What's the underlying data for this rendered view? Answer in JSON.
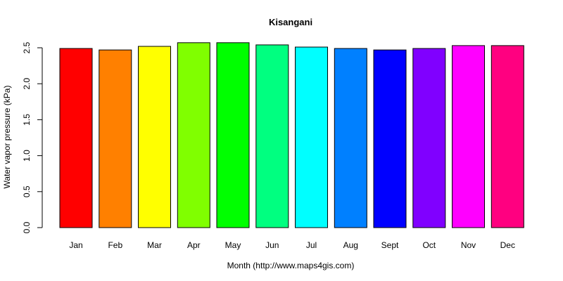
{
  "chart_data": {
    "type": "bar",
    "title": "Kisangani",
    "xlabel": "Month (http://www.maps4gis.com)",
    "ylabel": "Water vapor pressure (kPa)",
    "categories": [
      "Jan",
      "Feb",
      "Mar",
      "Apr",
      "May",
      "Jun",
      "Jul",
      "Aug",
      "Sept",
      "Oct",
      "Nov",
      "Dec"
    ],
    "values": [
      2.49,
      2.47,
      2.52,
      2.57,
      2.57,
      2.54,
      2.51,
      2.49,
      2.47,
      2.49,
      2.53,
      2.53
    ],
    "colors": [
      "#FF0000",
      "#FF8000",
      "#FFFF00",
      "#80FF00",
      "#00FF00",
      "#00FF80",
      "#00FFFF",
      "#0080FF",
      "#0000FF",
      "#8000FF",
      "#FF00FF",
      "#FF0080"
    ],
    "ylim": [
      0,
      2.5
    ],
    "yticks": [
      "0.0",
      "0.5",
      "1.0",
      "1.5",
      "2.0",
      "2.5"
    ],
    "grid": false,
    "legend": "none"
  }
}
